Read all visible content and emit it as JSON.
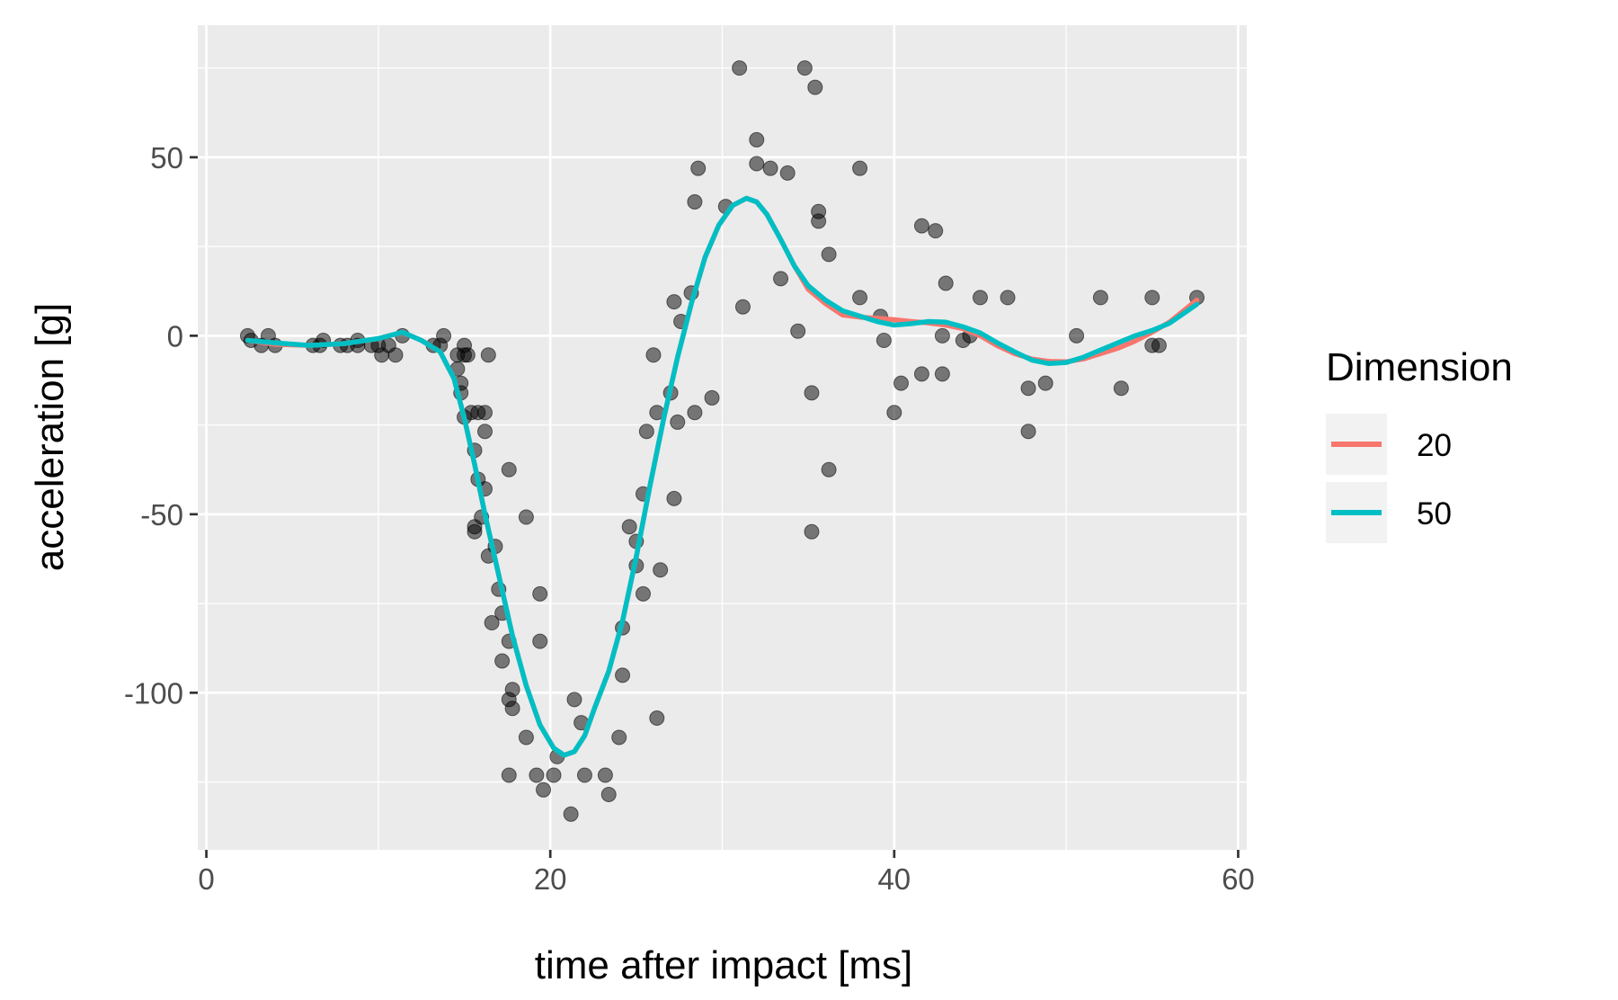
{
  "chart_data": {
    "type": "scatter",
    "title": "",
    "xlabel": "time after impact [ms]",
    "ylabel": "acceleration [g]",
    "xlim": [
      -0.5,
      60.5
    ],
    "ylim": [
      -144,
      87
    ],
    "x_ticks": [
      0,
      20,
      40,
      60
    ],
    "y_ticks": [
      -100,
      -50,
      0,
      50
    ],
    "x_tick_labels": [
      "0",
      "20",
      "40",
      "60"
    ],
    "y_tick_labels": [
      "-100",
      "-50",
      "0",
      "50"
    ],
    "grid": true,
    "panel_background": "#EBEBEB",
    "legend": {
      "title": "Dimension",
      "position": "right",
      "entries": [
        {
          "label": "20",
          "color": "#F8766D"
        },
        {
          "label": "50",
          "color": "#00BFC4"
        }
      ]
    },
    "points": [
      [
        2.4,
        0
      ],
      [
        2.6,
        -1.3
      ],
      [
        3.2,
        -2.7
      ],
      [
        3.6,
        0
      ],
      [
        4.0,
        -2.7
      ],
      [
        6.2,
        -2.7
      ],
      [
        6.6,
        -2.7
      ],
      [
        6.8,
        -1.3
      ],
      [
        7.8,
        -2.7
      ],
      [
        8.2,
        -2.7
      ],
      [
        8.8,
        -1.3
      ],
      [
        8.8,
        -2.7
      ],
      [
        9.6,
        -2.7
      ],
      [
        10.0,
        -2.7
      ],
      [
        10.2,
        -5.4
      ],
      [
        10.6,
        -2.7
      ],
      [
        11.0,
        -5.4
      ],
      [
        11.4,
        0
      ],
      [
        13.2,
        -2.7
      ],
      [
        13.6,
        -2.7
      ],
      [
        13.8,
        0
      ],
      [
        14.6,
        -5.4
      ],
      [
        14.6,
        -9.3
      ],
      [
        14.8,
        -13.3
      ],
      [
        14.8,
        -16.0
      ],
      [
        15.0,
        -5.4
      ],
      [
        15.0,
        -2.7
      ],
      [
        15.2,
        -5.4
      ],
      [
        15.0,
        -22.8
      ],
      [
        15.4,
        -21.5
      ],
      [
        15.6,
        -32.1
      ],
      [
        15.6,
        -53.5
      ],
      [
        15.6,
        -54.9
      ],
      [
        15.8,
        -40.2
      ],
      [
        15.8,
        -21.5
      ],
      [
        16.0,
        -50.8
      ],
      [
        16.2,
        -42.9
      ],
      [
        16.2,
        -26.8
      ],
      [
        16.2,
        -21.5
      ],
      [
        16.4,
        -61.7
      ],
      [
        16.4,
        -5.4
      ],
      [
        16.6,
        -80.4
      ],
      [
        16.8,
        -59.0
      ],
      [
        17.0,
        -71.0
      ],
      [
        17.2,
        -91.1
      ],
      [
        17.2,
        -77.7
      ],
      [
        17.6,
        -37.5
      ],
      [
        17.6,
        -85.6
      ],
      [
        17.6,
        -123.1
      ],
      [
        17.6,
        -101.9
      ],
      [
        17.8,
        -99.1
      ],
      [
        17.8,
        -104.4
      ],
      [
        18.6,
        -112.5
      ],
      [
        18.6,
        -50.8
      ],
      [
        19.2,
        -123.1
      ],
      [
        19.4,
        -85.6
      ],
      [
        19.4,
        -72.3
      ],
      [
        19.6,
        -127.2
      ],
      [
        20.2,
        -123.1
      ],
      [
        20.4,
        -117.9
      ],
      [
        21.2,
        -134.0
      ],
      [
        21.4,
        -101.9
      ],
      [
        21.8,
        -108.4
      ],
      [
        22.0,
        -123.1
      ],
      [
        23.2,
        -123.1
      ],
      [
        23.4,
        -128.5
      ],
      [
        24.0,
        -112.5
      ],
      [
        24.2,
        -95.1
      ],
      [
        24.2,
        -81.8
      ],
      [
        24.6,
        -53.5
      ],
      [
        25.0,
        -64.4
      ],
      [
        25.0,
        -57.6
      ],
      [
        25.4,
        -72.3
      ],
      [
        25.4,
        -44.3
      ],
      [
        25.6,
        -26.8
      ],
      [
        26.0,
        -5.4
      ],
      [
        26.2,
        -107.1
      ],
      [
        26.2,
        -21.5
      ],
      [
        26.4,
        -65.6
      ],
      [
        27.0,
        -16.0
      ],
      [
        27.2,
        -45.6
      ],
      [
        27.2,
        9.5
      ],
      [
        27.4,
        -24.2
      ],
      [
        27.6,
        4.0
      ],
      [
        28.2,
        12.0
      ],
      [
        28.4,
        -21.5
      ],
      [
        28.4,
        37.5
      ],
      [
        28.6,
        46.9
      ],
      [
        29.4,
        -17.4
      ],
      [
        30.2,
        36.2
      ],
      [
        31.0,
        75.0
      ],
      [
        31.2,
        8.1
      ],
      [
        32.0,
        54.9
      ],
      [
        32.0,
        48.2
      ],
      [
        32.8,
        46.9
      ],
      [
        33.4,
        16.0
      ],
      [
        33.8,
        45.6
      ],
      [
        34.4,
        1.3
      ],
      [
        34.8,
        75.0
      ],
      [
        35.2,
        -16.0
      ],
      [
        35.2,
        -54.9
      ],
      [
        35.4,
        69.6
      ],
      [
        35.6,
        34.8
      ],
      [
        35.6,
        32.1
      ],
      [
        36.2,
        22.8
      ],
      [
        36.2,
        -37.5
      ],
      [
        38.0,
        10.7
      ],
      [
        38.0,
        46.9
      ],
      [
        39.2,
        5.4
      ],
      [
        39.4,
        -1.3
      ],
      [
        40.0,
        -21.5
      ],
      [
        40.4,
        -13.3
      ],
      [
        41.6,
        -10.7
      ],
      [
        41.6,
        30.8
      ],
      [
        42.4,
        29.4
      ],
      [
        42.8,
        0
      ],
      [
        42.8,
        -10.7
      ],
      [
        43.0,
        14.7
      ],
      [
        44.0,
        -1.3
      ],
      [
        44.4,
        0
      ],
      [
        45.0,
        10.7
      ],
      [
        46.6,
        10.7
      ],
      [
        47.8,
        -14.7
      ],
      [
        47.8,
        -26.8
      ],
      [
        48.8,
        -13.3
      ],
      [
        50.6,
        0
      ],
      [
        52.0,
        10.7
      ],
      [
        53.2,
        -14.7
      ],
      [
        55.0,
        10.7
      ],
      [
        55.0,
        -2.7
      ],
      [
        55.4,
        -2.7
      ],
      [
        57.6,
        10.7
      ]
    ],
    "series": [
      {
        "name": "20",
        "color": "#F8766D",
        "x": [
          2.4,
          4,
          6,
          8,
          10,
          11.4,
          12.5,
          13.6,
          14.4,
          15,
          15.6,
          16.2,
          17,
          17.8,
          18.6,
          19.4,
          20.2,
          20.8,
          21.4,
          22,
          22.6,
          23.4,
          24.2,
          25,
          25.8,
          26.6,
          27.4,
          28.2,
          29,
          29.8,
          30.6,
          31.4,
          32,
          32.6,
          33.4,
          34.2,
          35,
          36,
          37,
          38,
          39,
          40,
          41,
          42,
          43,
          44,
          45,
          46,
          47,
          48,
          49,
          50,
          51,
          52,
          53,
          54,
          55,
          56,
          57.6
        ],
        "y": [
          -1.3,
          -2.4,
          -2.7,
          -2.2,
          -0.8,
          1.0,
          -1.3,
          -4.5,
          -12,
          -23,
          -36,
          -50,
          -67,
          -84,
          -98,
          -109,
          -115.5,
          -117.5,
          -116.5,
          -112,
          -104,
          -94,
          -80,
          -62,
          -42,
          -23,
          -6,
          9,
          22,
          31,
          36.5,
          38.5,
          37.5,
          34,
          27,
          19.5,
          13,
          9,
          5.8,
          5.2,
          4.9,
          4.5,
          4.0,
          3.6,
          3.0,
          2.0,
          0,
          -2.8,
          -5.0,
          -6.5,
          -7.2,
          -7.3,
          -6.5,
          -5.0,
          -3.5,
          -1.5,
          1.0,
          3.8,
          10.0
        ]
      },
      {
        "name": "50",
        "color": "#00BFC4",
        "x": [
          2.4,
          4,
          6,
          8,
          10,
          11.4,
          12.5,
          13.6,
          14.4,
          15,
          15.6,
          16.2,
          17,
          17.8,
          18.6,
          19.4,
          20.2,
          20.8,
          21.4,
          22,
          22.6,
          23.4,
          24.2,
          25,
          25.8,
          26.6,
          27.4,
          28.2,
          29,
          29.8,
          30.6,
          31.4,
          32,
          32.6,
          33.4,
          34.2,
          35,
          36,
          37,
          38,
          39,
          40,
          41,
          42,
          43,
          44,
          45,
          46,
          47,
          48,
          49,
          50,
          51,
          52,
          53,
          54,
          55,
          56,
          57.6
        ],
        "y": [
          -1.3,
          -2.0,
          -2.7,
          -2.2,
          -0.8,
          1.0,
          -1.3,
          -4.5,
          -12,
          -23,
          -36,
          -50,
          -67,
          -84,
          -98,
          -109,
          -115.5,
          -117.5,
          -116.5,
          -112,
          -104,
          -94,
          -80,
          -62,
          -42,
          -23,
          -6,
          9,
          22,
          31,
          36.5,
          38.5,
          37.5,
          34,
          27,
          19.5,
          14,
          10,
          7,
          5.5,
          4.0,
          3.0,
          3.4,
          4.0,
          3.8,
          2.5,
          0.8,
          -2.0,
          -4.5,
          -6.8,
          -7.8,
          -7.5,
          -6.0,
          -4.0,
          -2.0,
          0,
          1.5,
          3.5,
          8.8
        ]
      }
    ]
  }
}
